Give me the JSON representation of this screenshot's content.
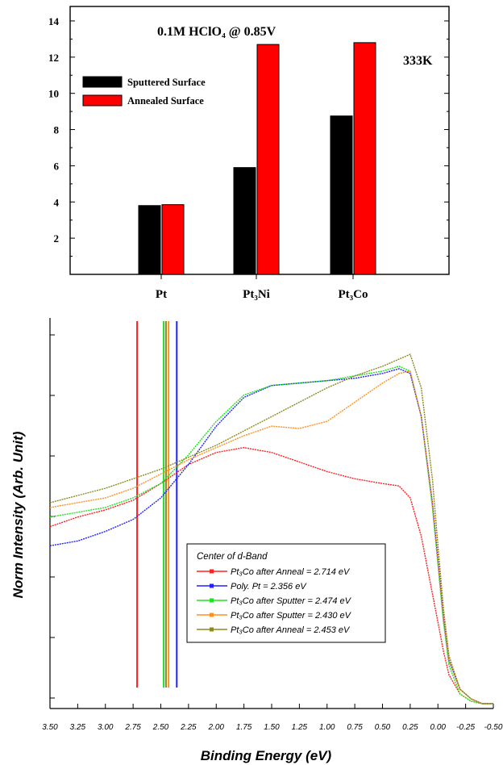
{
  "chart_data": [
    {
      "type": "bar",
      "title": "0.1M HClO₄ @ 0.85V",
      "annotation": "333K",
      "categories": [
        "Pt",
        "Pt₃Ni",
        "Pt₃Co"
      ],
      "series": [
        {
          "name": "Sputtered Surface",
          "color": "#000000",
          "values": [
            3.8,
            5.9,
            8.75
          ]
        },
        {
          "name": "Annealed Surface",
          "color": "#ff0000",
          "values": [
            3.85,
            12.7,
            12.8
          ]
        }
      ],
      "ylim": [
        0,
        14.8
      ],
      "yticks": [
        2,
        4,
        6,
        8,
        10,
        12,
        14
      ],
      "legend": "upper-left",
      "grid": false
    },
    {
      "type": "line",
      "ylabel": "Norm Intensity (Arb. Unit)",
      "xlabel": "Binding Energy (eV)",
      "xlim": [
        3.5,
        -0.5
      ],
      "xticks": [
        "3.50",
        "3.25",
        "3.00",
        "2.75",
        "2.50",
        "2.25",
        "2.00",
        "1.75",
        "1.50",
        "1.25",
        "1.00",
        "0.75",
        "0.50",
        "0.25",
        "0.00",
        "-0.25",
        "-0.50"
      ],
      "legend_title": "Center of d-Band",
      "legend": "lower-center",
      "grid": false,
      "series": [
        {
          "name": "Pt₃Co after Anneal = 2.714 eV",
          "color": "#ff2020",
          "dband_center": 2.714,
          "x": [
            3.5,
            3.25,
            3.0,
            2.75,
            2.5,
            2.25,
            2.0,
            1.75,
            1.5,
            1.25,
            1.0,
            0.75,
            0.5,
            0.35,
            0.25,
            0.15,
            0.05,
            0.0,
            -0.05,
            -0.1,
            -0.2,
            -0.3,
            -0.4,
            -0.5
          ],
          "y": [
            0.37,
            0.39,
            0.405,
            0.425,
            0.46,
            0.5,
            0.525,
            0.535,
            0.525,
            0.505,
            0.485,
            0.47,
            0.46,
            0.455,
            0.43,
            0.35,
            0.23,
            0.17,
            0.11,
            0.06,
            0.02,
            0.005,
            0.0,
            0.0
          ]
        },
        {
          "name": "Poly. Pt = 2.356 eV",
          "color": "#2020ff",
          "dband_center": 2.356,
          "x": [
            3.5,
            3.25,
            3.0,
            2.75,
            2.5,
            2.25,
            2.0,
            1.75,
            1.5,
            1.25,
            1.0,
            0.75,
            0.5,
            0.35,
            0.25,
            0.15,
            0.05,
            0.0,
            -0.05,
            -0.1,
            -0.2,
            -0.3,
            -0.4,
            -0.5
          ],
          "y": [
            0.33,
            0.34,
            0.36,
            0.385,
            0.43,
            0.5,
            0.58,
            0.64,
            0.665,
            0.67,
            0.675,
            0.68,
            0.69,
            0.7,
            0.69,
            0.6,
            0.42,
            0.3,
            0.18,
            0.09,
            0.03,
            0.01,
            0.0,
            0.0
          ]
        },
        {
          "name": "Pt₃Co after Sputter = 2.474 eV",
          "color": "#20e020",
          "dband_center": 2.474,
          "x": [
            3.5,
            3.25,
            3.0,
            2.75,
            2.5,
            2.25,
            2.0,
            1.75,
            1.5,
            1.25,
            1.0,
            0.75,
            0.5,
            0.35,
            0.25,
            0.15,
            0.05,
            0.0,
            -0.05,
            -0.1,
            -0.2,
            -0.3,
            -0.4,
            -0.5
          ],
          "y": [
            0.39,
            0.4,
            0.41,
            0.43,
            0.46,
            0.52,
            0.59,
            0.645,
            0.665,
            0.67,
            0.675,
            0.685,
            0.695,
            0.705,
            0.695,
            0.6,
            0.41,
            0.29,
            0.17,
            0.08,
            0.02,
            0.005,
            0.0,
            0.0
          ]
        },
        {
          "name": "Pt₃Co after Sputter = 2.430 eV",
          "color": "#ff9020",
          "dband_center": 2.43,
          "x": [
            3.5,
            3.25,
            3.0,
            2.75,
            2.5,
            2.25,
            2.0,
            1.75,
            1.5,
            1.25,
            1.0,
            0.75,
            0.5,
            0.35,
            0.25,
            0.15,
            0.05,
            0.0,
            -0.05,
            -0.1,
            -0.2,
            -0.3,
            -0.4,
            -0.5
          ],
          "y": [
            0.41,
            0.42,
            0.43,
            0.45,
            0.48,
            0.51,
            0.535,
            0.56,
            0.58,
            0.575,
            0.59,
            0.63,
            0.67,
            0.69,
            0.695,
            0.6,
            0.42,
            0.3,
            0.18,
            0.09,
            0.03,
            0.01,
            0.0,
            0.0
          ]
        },
        {
          "name": "Pt₃Co after Anneal = 2.453 eV",
          "color": "#8b8b20",
          "dband_center": 2.453,
          "x": [
            3.5,
            3.25,
            3.0,
            2.75,
            2.5,
            2.25,
            2.0,
            1.75,
            1.5,
            1.25,
            1.0,
            0.75,
            0.5,
            0.35,
            0.25,
            0.15,
            0.05,
            0.0,
            -0.05,
            -0.1,
            -0.2,
            -0.3,
            -0.4,
            -0.5
          ],
          "y": [
            0.42,
            0.435,
            0.45,
            0.47,
            0.49,
            0.515,
            0.54,
            0.57,
            0.6,
            0.63,
            0.66,
            0.685,
            0.705,
            0.72,
            0.73,
            0.66,
            0.47,
            0.33,
            0.2,
            0.1,
            0.03,
            0.01,
            0.0,
            0.0
          ]
        }
      ]
    }
  ]
}
